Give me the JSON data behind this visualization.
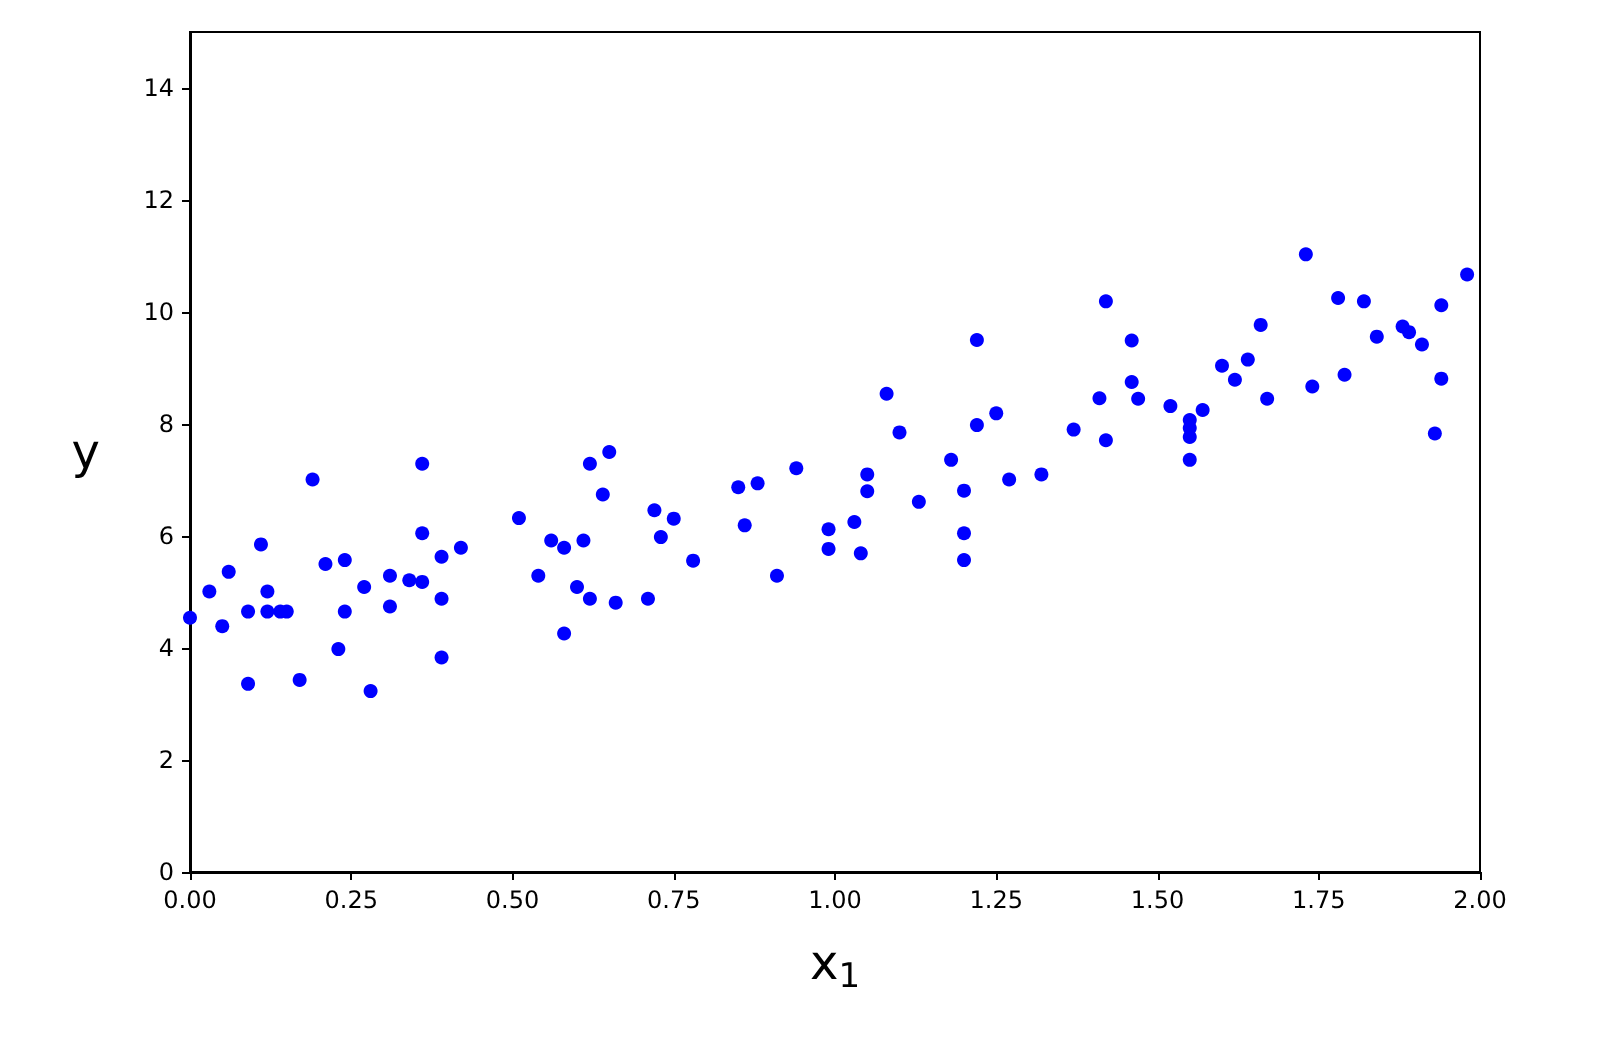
{
  "chart_data": {
    "type": "scatter",
    "xlabel": "x$_{1}$",
    "ylabel": "y",
    "x": [
      0.0,
      0.03,
      0.05,
      0.06,
      0.09,
      0.09,
      0.11,
      0.12,
      0.12,
      0.14,
      0.15,
      0.17,
      0.19,
      0.21,
      0.23,
      0.24,
      0.24,
      0.27,
      0.28,
      0.31,
      0.31,
      0.34,
      0.36,
      0.36,
      0.36,
      0.39,
      0.39,
      0.39,
      0.42,
      0.51,
      0.54,
      0.56,
      0.58,
      0.58,
      0.6,
      0.61,
      0.62,
      0.62,
      0.64,
      0.65,
      0.66,
      0.71,
      0.72,
      0.73,
      0.75,
      0.78,
      0.85,
      0.86,
      0.88,
      0.91,
      0.94,
      0.99,
      0.99,
      1.03,
      1.04,
      1.05,
      1.05,
      1.08,
      1.1,
      1.13,
      1.18,
      1.2,
      1.2,
      1.2,
      1.22,
      1.22,
      1.25,
      1.27,
      1.32,
      1.37,
      1.41,
      1.42,
      1.42,
      1.46,
      1.46,
      1.47,
      1.52,
      1.55,
      1.55,
      1.55,
      1.55,
      1.57,
      1.6,
      1.62,
      1.64,
      1.66,
      1.67,
      1.73,
      1.74,
      1.78,
      1.79,
      1.82,
      1.84,
      1.88,
      1.89,
      1.91,
      1.93,
      1.94,
      1.94,
      1.98
    ],
    "series": [
      {
        "color": "#0000ff",
        "values": [
          4.54,
          5.01,
          4.39,
          5.36,
          4.65,
          3.36,
          5.85,
          5.01,
          4.65,
          4.65,
          4.65,
          3.43,
          7.01,
          5.5,
          3.98,
          5.57,
          4.65,
          5.09,
          3.23,
          5.29,
          4.74,
          5.21,
          5.18,
          7.29,
          6.05,
          5.63,
          4.88,
          3.83,
          5.79,
          6.32,
          5.29,
          5.92,
          5.79,
          4.26,
          5.09,
          5.92,
          7.29,
          4.88,
          6.74,
          7.5,
          4.81,
          4.88,
          6.46,
          5.98,
          6.31,
          5.56,
          6.87,
          6.19,
          6.94,
          5.29,
          7.21,
          6.12,
          5.77,
          6.25,
          5.69,
          7.1,
          6.8,
          8.54,
          7.85,
          6.61,
          7.36,
          6.05,
          5.57,
          6.81,
          7.98,
          9.5,
          8.19,
          7.01,
          7.1,
          7.9,
          8.46,
          7.71,
          10.19,
          9.49,
          8.75,
          8.45,
          8.32,
          8.07,
          7.93,
          7.77,
          7.36,
          8.25,
          9.04,
          8.79,
          9.15,
          9.77,
          8.45,
          11.03,
          8.67,
          10.25,
          8.88,
          10.19,
          9.56,
          9.74,
          9.64,
          9.42,
          7.83,
          10.12,
          8.81,
          10.67
        ]
      }
    ],
    "marker": "circle",
    "grid": false,
    "xlim": [
      0,
      2
    ],
    "xticks": [
      {
        "value": 0,
        "label": "0.00"
      },
      {
        "value": 0.25,
        "label": "0.25"
      },
      {
        "value": 0.5,
        "label": "0.50"
      },
      {
        "value": 0.75,
        "label": "0.75"
      },
      {
        "value": 1,
        "label": "1.00"
      },
      {
        "value": 1.25,
        "label": "1.25"
      },
      {
        "value": 1.5,
        "label": "1.50"
      },
      {
        "value": 1.75,
        "label": "1.75"
      },
      {
        "value": 2,
        "label": "2.00"
      }
    ],
    "ylim": [
      0,
      15
    ],
    "yticks": [
      0,
      2,
      4,
      6,
      8,
      10,
      12,
      14
    ]
  }
}
